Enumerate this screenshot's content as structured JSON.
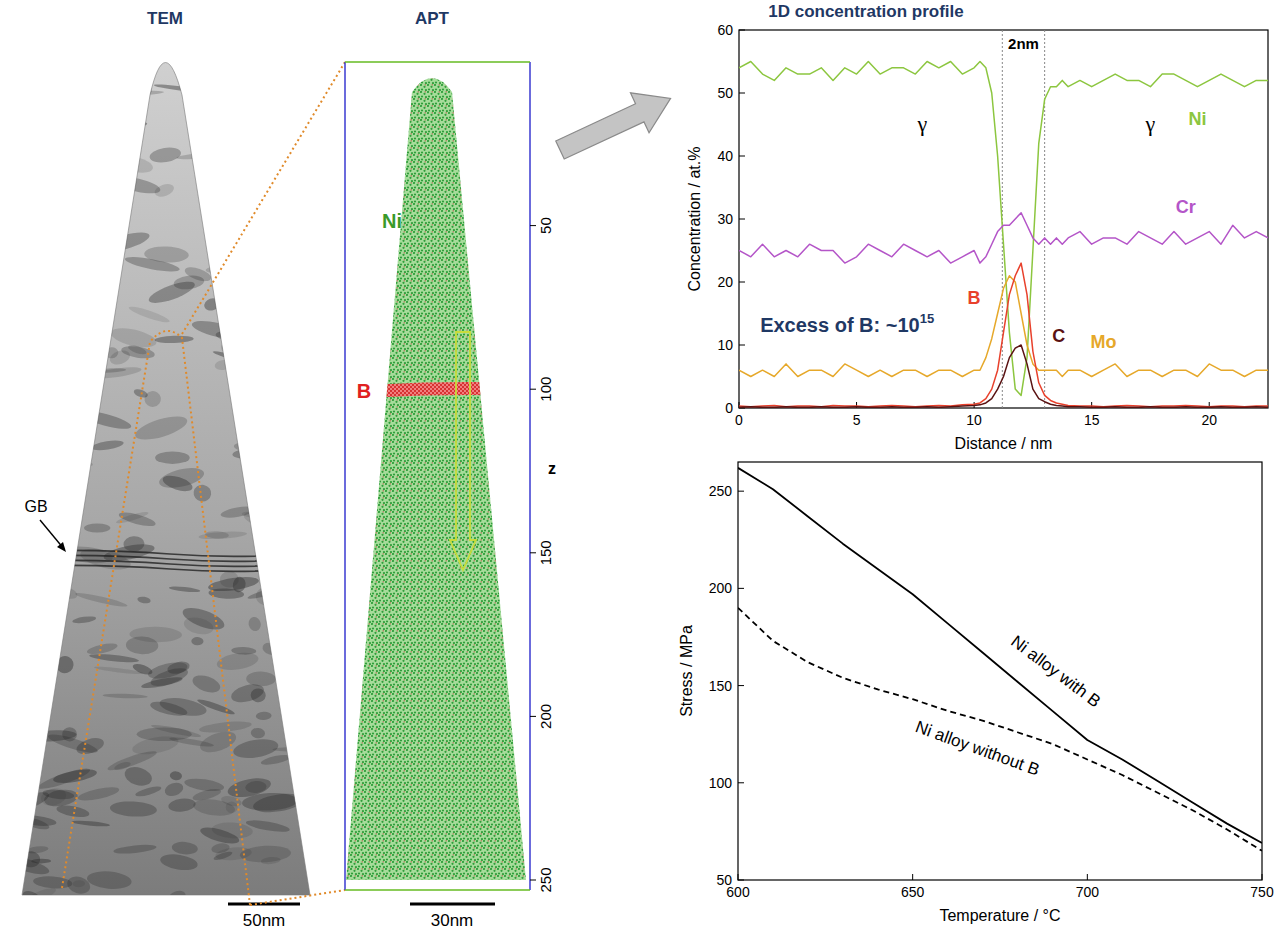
{
  "figure": {
    "tem": {
      "title": "TEM",
      "label": "GB",
      "scale_bar": "50nm"
    },
    "apt": {
      "title": "APT",
      "labels": [
        {
          "text": "Ni",
          "color": "#3a9a2a"
        },
        {
          "text": "B",
          "color": "#e02020"
        }
      ],
      "axis_title": "z",
      "zlim": [
        0,
        250
      ],
      "zticks": [
        50,
        100,
        150,
        200,
        250
      ],
      "scale_bar": "30nm"
    }
  },
  "chart_data": [
    {
      "type": "line",
      "title": "1D concentration profile",
      "x_label": "Distance / nm",
      "y_label": "Concentration / at.%",
      "xlim": [
        0,
        22.5
      ],
      "xticks": [
        0,
        5,
        10,
        15,
        20
      ],
      "ylim": [
        0,
        60
      ],
      "yticks": [
        0,
        10,
        20,
        30,
        40,
        50,
        60
      ],
      "grid": false,
      "x": [
        0,
        0.5,
        1,
        1.5,
        2,
        2.5,
        3,
        3.5,
        4,
        4.5,
        5,
        5.5,
        6,
        6.5,
        7,
        7.5,
        8,
        8.5,
        9,
        9.5,
        10,
        10.25,
        10.5,
        10.75,
        11,
        11.25,
        11.5,
        11.75,
        12,
        12.25,
        12.5,
        12.75,
        13,
        13.25,
        13.5,
        13.75,
        14,
        14.5,
        15,
        15.5,
        16,
        16.5,
        17,
        17.5,
        18,
        18.5,
        19,
        19.5,
        20,
        20.5,
        21,
        21.5,
        22,
        22.5
      ],
      "series": [
        {
          "name": "Ni",
          "color": "#8cc63f",
          "values": [
            54,
            55,
            53,
            52,
            54,
            53,
            53,
            54,
            52,
            54,
            53,
            55,
            53,
            54,
            54,
            53,
            55,
            54,
            55,
            53,
            54,
            55,
            54,
            50,
            40,
            26,
            12,
            3,
            2,
            8,
            25,
            42,
            49,
            51,
            51,
            52,
            51,
            52,
            51,
            52,
            53,
            52,
            52,
            51,
            53,
            53,
            52,
            51,
            52,
            53,
            52,
            51,
            52,
            52
          ]
        },
        {
          "name": "Cr",
          "color": "#b455c8",
          "values": [
            25,
            24,
            26,
            24,
            25,
            24,
            26,
            25,
            25,
            23,
            24,
            26,
            25,
            24,
            26,
            25,
            24,
            25,
            23,
            24,
            25,
            23,
            24,
            26,
            28,
            29,
            29,
            30,
            31,
            29,
            27,
            26,
            27,
            26,
            27,
            26,
            27,
            28,
            26,
            27,
            27,
            26,
            28,
            27,
            26,
            28,
            26,
            27,
            28,
            26,
            29,
            27,
            28,
            27
          ]
        },
        {
          "name": "Mo",
          "color": "#e6a82a",
          "values": [
            6,
            5,
            6,
            5,
            7,
            5,
            6,
            6,
            5,
            7,
            6,
            5,
            6,
            5,
            6,
            6,
            5,
            6,
            6,
            5,
            6,
            6,
            8,
            11,
            15,
            19,
            21,
            20,
            15,
            10,
            7,
            6,
            6,
            6,
            6,
            5,
            6,
            6,
            5,
            6,
            7,
            5,
            6,
            6,
            5,
            6,
            6,
            5,
            7,
            6,
            6,
            5,
            6,
            6
          ]
        },
        {
          "name": "B",
          "color": "#e8412c",
          "values": [
            0.3,
            0.2,
            0.3,
            0.4,
            0.2,
            0.3,
            0.3,
            0.2,
            0.4,
            0.3,
            0.3,
            0.2,
            0.3,
            0.4,
            0.3,
            0.2,
            0.3,
            0.4,
            0.3,
            0.5,
            0.6,
            0.8,
            1.5,
            3,
            6,
            12,
            18,
            21,
            23,
            18,
            9,
            4,
            2,
            1.2,
            0.8,
            0.6,
            0.4,
            0.3,
            0.3,
            0.2,
            0.3,
            0.4,
            0.3,
            0.2,
            0.3,
            0.3,
            0.4,
            0.3,
            0.2,
            0.3,
            0.3,
            0.2,
            0.3,
            0.3
          ]
        },
        {
          "name": "C",
          "color": "#5a1212",
          "values": [
            0.1,
            0.2,
            0.1,
            0.1,
            0.2,
            0.1,
            0.1,
            0.2,
            0.1,
            0.1,
            0.2,
            0.1,
            0.1,
            0.2,
            0.1,
            0.1,
            0.2,
            0.1,
            0.2,
            0.3,
            0.4,
            0.5,
            0.8,
            1.5,
            3,
            5,
            8,
            9.5,
            10,
            7,
            3,
            1.5,
            1,
            0.6,
            0.4,
            0.3,
            0.2,
            0.2,
            0.1,
            0.1,
            0.2,
            0.1,
            0.1,
            0.2,
            0.1,
            0.1,
            0.2,
            0.1,
            0.1,
            0.2,
            0.1,
            0.1,
            0.2,
            0.1
          ]
        }
      ],
      "interface_x": [
        11.2,
        13.0
      ],
      "annotations": [
        {
          "text": "2nm"
        },
        {
          "text": "γ"
        },
        {
          "text": "γ"
        },
        {
          "text": "Excess of B: ~10",
          "superscript": "15"
        }
      ]
    },
    {
      "type": "line",
      "x_label": "Temperature / °C",
      "y_label": "Stress / MPa",
      "xlim": [
        600,
        750
      ],
      "xticks": [
        600,
        650,
        700,
        750
      ],
      "ylim": [
        50,
        265
      ],
      "yticks": [
        50,
        100,
        150,
        200,
        250
      ],
      "grid": false,
      "x": [
        600,
        610,
        620,
        630,
        640,
        650,
        660,
        670,
        680,
        690,
        700,
        710,
        720,
        730,
        740,
        750
      ],
      "series": [
        {
          "name": "Ni alloy with B",
          "color": "#000000",
          "line_style": "solid",
          "values": [
            262,
            251,
            237,
            223,
            210,
            197,
            182,
            167,
            152,
            137,
            122,
            112,
            101,
            90,
            79,
            69
          ]
        },
        {
          "name": "Ni alloy without B",
          "color": "#000000",
          "line_style": "dashed",
          "values": [
            190,
            173,
            162,
            154,
            148,
            143,
            137,
            132,
            126,
            120,
            112,
            104,
            95,
            86,
            76,
            65
          ]
        }
      ]
    }
  ]
}
